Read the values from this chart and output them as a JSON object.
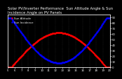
{
  "title": "Solar PV/Inverter Performance  Sun Altitude Angle & Sun Incidence Angle on PV Panels",
  "legend1": "Sun Altitude",
  "legend2": "Sun Incidence",
  "bg_color": "#000000",
  "plot_bg_color": "#000000",
  "grid_color": "#444444",
  "line1_color": "#ff0000",
  "line2_color": "#0000ff",
  "text_color": "#ffffff",
  "x_start": 5,
  "x_end": 20,
  "num_points": 300,
  "altitude_peak": 62,
  "altitude_start_hour": 5.5,
  "altitude_end_hour": 19.5,
  "incidence_min": 8,
  "incidence_max": 88,
  "right_yticks": [
    0,
    10,
    20,
    30,
    40,
    50,
    60,
    70,
    80,
    90
  ],
  "xlim": [
    5,
    20
  ],
  "ylim": [
    0,
    95
  ],
  "title_fontsize": 3.8,
  "tick_fontsize": 2.8,
  "legend_fontsize": 2.8,
  "markersize": 1.0,
  "xticks": [
    5,
    6,
    7,
    8,
    9,
    10,
    11,
    12,
    13,
    14,
    15,
    16,
    17,
    18,
    19,
    20
  ]
}
